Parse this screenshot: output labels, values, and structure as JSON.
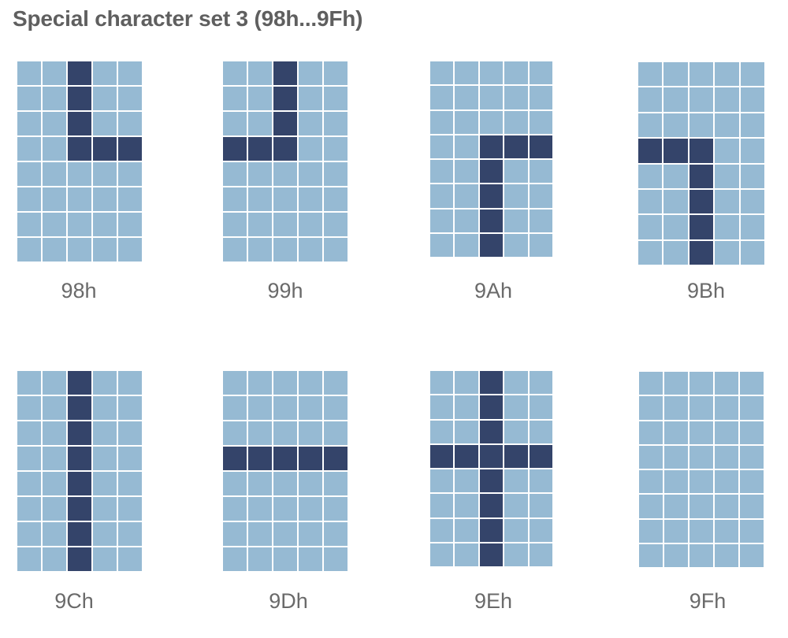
{
  "title": "Special character set 3 (98h...9Fh)",
  "colors": {
    "on": "#34446a",
    "off": "#96bad3"
  },
  "characters": [
    {
      "code": "98h",
      "rows": [
        "00100",
        "00100",
        "00100",
        "00111",
        "00000",
        "00000",
        "00000",
        "00000"
      ]
    },
    {
      "code": "99h",
      "rows": [
        "00100",
        "00100",
        "00100",
        "11100",
        "00000",
        "00000",
        "00000",
        "00000"
      ]
    },
    {
      "code": "9Ah",
      "rows": [
        "00000",
        "00000",
        "00000",
        "00111",
        "00100",
        "00100",
        "00100",
        "00100"
      ]
    },
    {
      "code": "9Bh",
      "rows": [
        "00000",
        "00000",
        "00000",
        "11100",
        "00100",
        "00100",
        "00100",
        "00100"
      ]
    },
    {
      "code": "9Ch",
      "rows": [
        "00100",
        "00100",
        "00100",
        "00100",
        "00100",
        "00100",
        "00100",
        "00100"
      ]
    },
    {
      "code": "9Dh",
      "rows": [
        "00000",
        "00000",
        "00000",
        "11111",
        "00000",
        "00000",
        "00000",
        "00000"
      ]
    },
    {
      "code": "9Eh",
      "rows": [
        "00100",
        "00100",
        "00100",
        "11111",
        "00100",
        "00100",
        "00100",
        "00100"
      ]
    },
    {
      "code": "9Fh",
      "rows": [
        "00000",
        "00000",
        "00000",
        "00000",
        "00000",
        "00000",
        "00000",
        "00000"
      ]
    }
  ]
}
